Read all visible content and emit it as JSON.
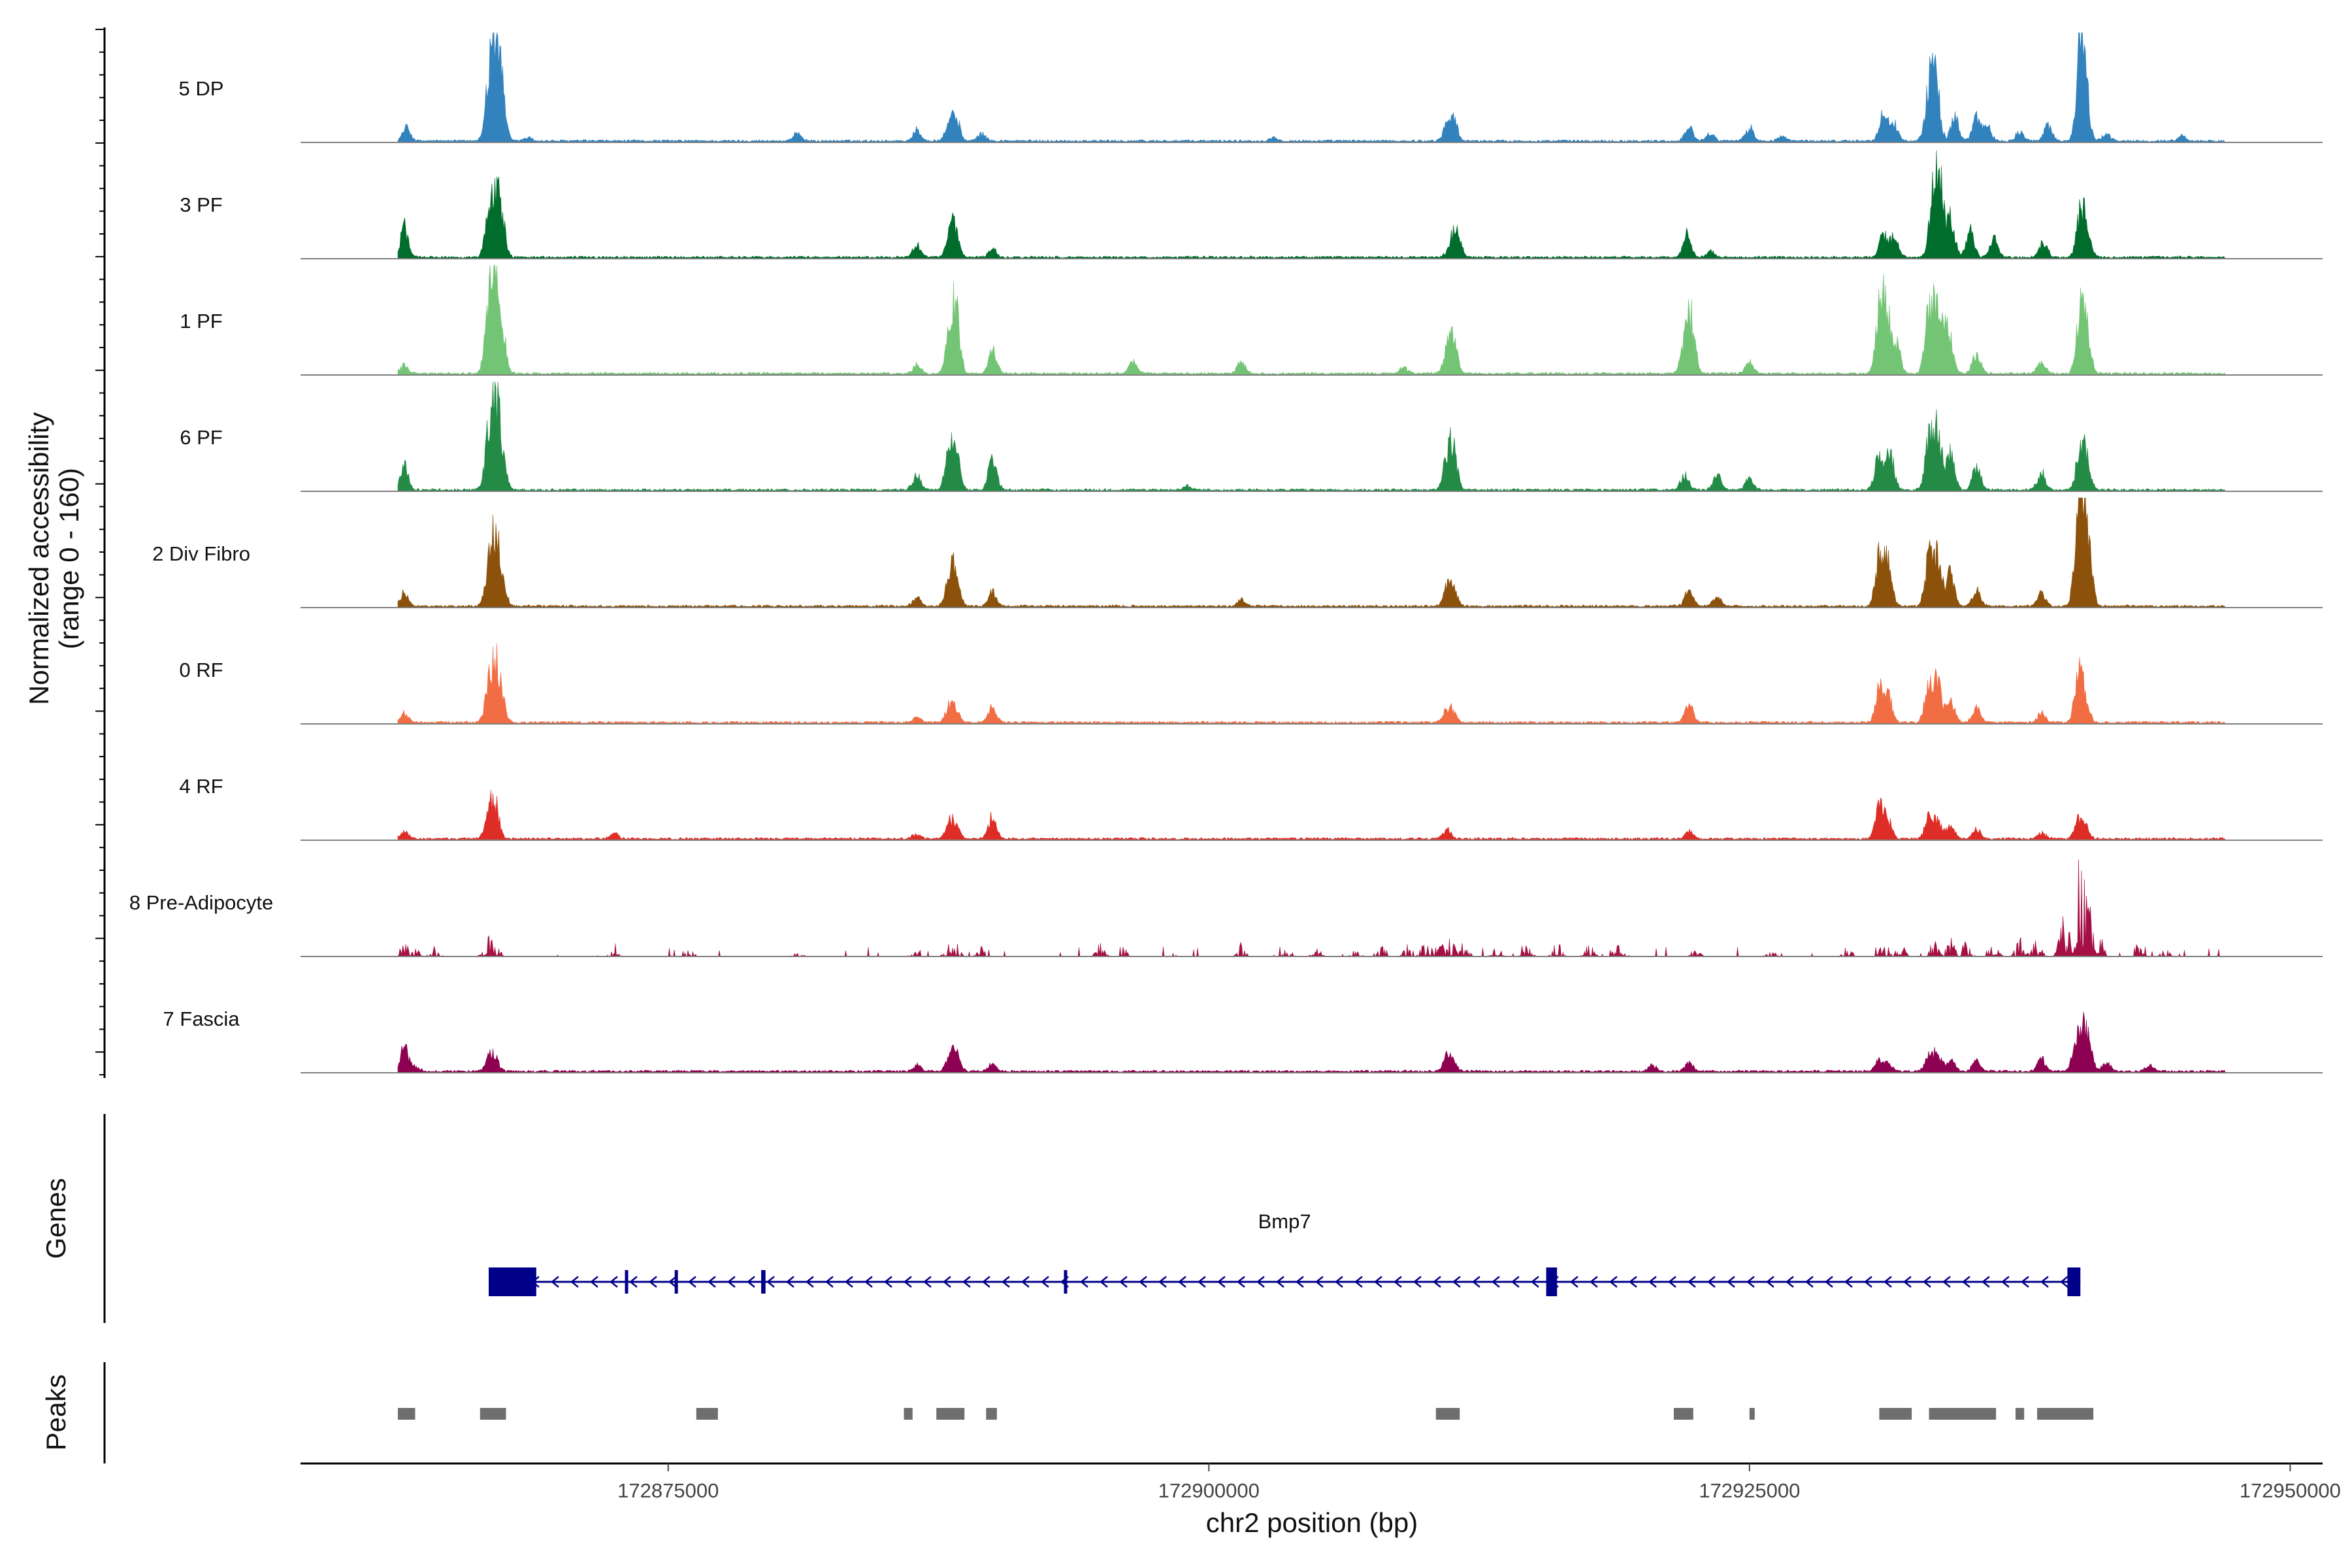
{
  "chart_data": {
    "type": "genome-coverage",
    "region": {
      "chromosome": "chr2",
      "start": 172858000,
      "end": 172951500
    },
    "y_axis_title": [
      "Normalized accessibility",
      "(range 0 - 160)"
    ],
    "y_range": [
      0,
      160
    ],
    "x_axis_title": "chr2 position (bp)",
    "x_ticks": [
      {
        "value": 172875000,
        "label": "172875000"
      },
      {
        "value": 172900000,
        "label": "172900000"
      },
      {
        "value": 172925000,
        "label": "172925000"
      },
      {
        "value": 172950000,
        "label": "172950000"
      }
    ],
    "coverage_range": [
      172862500,
      172947000
    ],
    "tracks": [
      {
        "name": "5 DP",
        "color": "#3182bd",
        "peaks": [
          [
            172862900,
            22
          ],
          [
            172866700,
            90
          ],
          [
            172867000,
            145
          ],
          [
            172867300,
            75
          ],
          [
            172868500,
            6
          ],
          [
            172881000,
            14
          ],
          [
            172886500,
            18
          ],
          [
            172888000,
            28
          ],
          [
            172888300,
            35
          ],
          [
            172889500,
            12
          ],
          [
            172903000,
            6
          ],
          [
            172911000,
            22
          ],
          [
            172911300,
            35
          ],
          [
            172922200,
            25
          ],
          [
            172923200,
            15
          ],
          [
            172925000,
            22
          ],
          [
            172926500,
            8
          ],
          [
            172931200,
            50
          ],
          [
            172931700,
            28
          ],
          [
            172933300,
            75
          ],
          [
            172933600,
            110
          ],
          [
            172934500,
            40
          ],
          [
            172935500,
            40
          ],
          [
            172936000,
            25
          ],
          [
            172937500,
            15
          ],
          [
            172938800,
            25
          ],
          [
            172940300,
            145
          ],
          [
            172940500,
            90
          ],
          [
            172941500,
            12
          ],
          [
            172945000,
            8
          ]
        ]
      },
      {
        "name": "3 PF",
        "color": "#006d2c",
        "peaks": [
          [
            172862800,
            50
          ],
          [
            172866700,
            60
          ],
          [
            172867000,
            90
          ],
          [
            172867300,
            55
          ],
          [
            172886500,
            22
          ],
          [
            172888000,
            35
          ],
          [
            172888300,
            42
          ],
          [
            172890000,
            15
          ],
          [
            172911200,
            25
          ],
          [
            172911500,
            35
          ],
          [
            172922100,
            40
          ],
          [
            172923200,
            10
          ],
          [
            172931200,
            40
          ],
          [
            172931700,
            35
          ],
          [
            172933500,
            100
          ],
          [
            172933800,
            115
          ],
          [
            172934300,
            65
          ],
          [
            172935200,
            45
          ],
          [
            172936300,
            30
          ],
          [
            172938600,
            25
          ],
          [
            172940300,
            70
          ],
          [
            172940600,
            40
          ]
        ]
      },
      {
        "name": "1 PF",
        "color": "#74c476",
        "peaks": [
          [
            172862800,
            14
          ],
          [
            172866700,
            100
          ],
          [
            172867000,
            155
          ],
          [
            172867300,
            75
          ],
          [
            172886500,
            15
          ],
          [
            172888000,
            65
          ],
          [
            172888300,
            100
          ],
          [
            172890000,
            40
          ],
          [
            172896500,
            20
          ],
          [
            172901500,
            22
          ],
          [
            172909000,
            10
          ],
          [
            172911000,
            30
          ],
          [
            172911300,
            65
          ],
          [
            172922000,
            45
          ],
          [
            172922300,
            90
          ],
          [
            172925000,
            20
          ],
          [
            172931000,
            95
          ],
          [
            172931300,
            110
          ],
          [
            172931800,
            50
          ],
          [
            172933300,
            100
          ],
          [
            172933700,
            110
          ],
          [
            172934200,
            80
          ],
          [
            172935500,
            35
          ],
          [
            172938500,
            20
          ],
          [
            172940300,
            95
          ],
          [
            172940600,
            60
          ]
        ]
      },
      {
        "name": "6 PF",
        "color": "#238b45",
        "peaks": [
          [
            172862800,
            38
          ],
          [
            172866700,
            80
          ],
          [
            172867000,
            130
          ],
          [
            172867300,
            60
          ],
          [
            172886500,
            25
          ],
          [
            172888000,
            65
          ],
          [
            172888300,
            75
          ],
          [
            172890000,
            55
          ],
          [
            172899000,
            8
          ],
          [
            172911000,
            45
          ],
          [
            172911300,
            65
          ],
          [
            172922000,
            25
          ],
          [
            172923500,
            25
          ],
          [
            172925000,
            20
          ],
          [
            172931000,
            70
          ],
          [
            172931500,
            60
          ],
          [
            172933300,
            85
          ],
          [
            172933700,
            95
          ],
          [
            172934300,
            60
          ],
          [
            172935500,
            40
          ],
          [
            172938500,
            30
          ],
          [
            172940300,
            75
          ],
          [
            172940600,
            40
          ]
        ]
      },
      {
        "name": "2 Div Fibro",
        "color": "#8c510a",
        "peaks": [
          [
            172862800,
            22
          ],
          [
            172866700,
            60
          ],
          [
            172867000,
            95
          ],
          [
            172867300,
            45
          ],
          [
            172886500,
            15
          ],
          [
            172888000,
            40
          ],
          [
            172888300,
            55
          ],
          [
            172890000,
            25
          ],
          [
            172901500,
            10
          ],
          [
            172911000,
            25
          ],
          [
            172911300,
            30
          ],
          [
            172922200,
            28
          ],
          [
            172923500,
            18
          ],
          [
            172931000,
            80
          ],
          [
            172931400,
            70
          ],
          [
            172933300,
            80
          ],
          [
            172933700,
            75
          ],
          [
            172934300,
            55
          ],
          [
            172935500,
            25
          ],
          [
            172938500,
            20
          ],
          [
            172940200,
            115
          ],
          [
            172940400,
            150
          ],
          [
            172940700,
            70
          ]
        ]
      },
      {
        "name": "0 RF",
        "color": "#f16d43",
        "peaks": [
          [
            172862800,
            15
          ],
          [
            172866700,
            50
          ],
          [
            172867000,
            85
          ],
          [
            172867300,
            35
          ],
          [
            172886500,
            8
          ],
          [
            172888000,
            25
          ],
          [
            172888300,
            20
          ],
          [
            172890000,
            25
          ],
          [
            172911000,
            20
          ],
          [
            172911300,
            15
          ],
          [
            172922200,
            35
          ],
          [
            172931000,
            55
          ],
          [
            172931400,
            45
          ],
          [
            172933300,
            65
          ],
          [
            172933700,
            60
          ],
          [
            172934300,
            40
          ],
          [
            172935500,
            25
          ],
          [
            172938500,
            15
          ],
          [
            172940200,
            70
          ],
          [
            172940500,
            40
          ]
        ]
      },
      {
        "name": "4 RF",
        "color": "#de2d26",
        "peaks": [
          [
            172862800,
            12
          ],
          [
            172866700,
            40
          ],
          [
            172867000,
            55
          ],
          [
            172872500,
            8
          ],
          [
            172886500,
            8
          ],
          [
            172888000,
            25
          ],
          [
            172888300,
            20
          ],
          [
            172890000,
            40
          ],
          [
            172911000,
            15
          ],
          [
            172922200,
            12
          ],
          [
            172931000,
            55
          ],
          [
            172931400,
            30
          ],
          [
            172933300,
            35
          ],
          [
            172933700,
            30
          ],
          [
            172934300,
            22
          ],
          [
            172935500,
            15
          ],
          [
            172938500,
            10
          ],
          [
            172940200,
            30
          ],
          [
            172940500,
            20
          ]
        ]
      },
      {
        "name": "8 Pre-Adipocyte",
        "color": "#a50f45",
        "peaks": [
          [
            172862800,
            20
          ],
          [
            172863300,
            12
          ],
          [
            172864200,
            12
          ],
          [
            172866700,
            28
          ],
          [
            172867000,
            18
          ],
          [
            172872500,
            8
          ],
          [
            172876000,
            10
          ],
          [
            172881000,
            8
          ],
          [
            172886500,
            12
          ],
          [
            172888000,
            18
          ],
          [
            172888300,
            15
          ],
          [
            172889500,
            12
          ],
          [
            172895000,
            18
          ],
          [
            172896000,
            14
          ],
          [
            172901500,
            15
          ],
          [
            172903500,
            12
          ],
          [
            172905000,
            12
          ],
          [
            172906800,
            10
          ],
          [
            172908000,
            15
          ],
          [
            172909200,
            18
          ],
          [
            172910000,
            20
          ],
          [
            172910600,
            22
          ],
          [
            172911200,
            25
          ],
          [
            172911800,
            20
          ],
          [
            172913300,
            15
          ],
          [
            172914700,
            15
          ],
          [
            172916100,
            20
          ],
          [
            172917600,
            18
          ],
          [
            172919000,
            22
          ],
          [
            172922500,
            10
          ],
          [
            172926000,
            10
          ],
          [
            172929500,
            12
          ],
          [
            172931200,
            18
          ],
          [
            172932000,
            22
          ],
          [
            172933500,
            25
          ],
          [
            172934300,
            30
          ],
          [
            172935000,
            20
          ],
          [
            172936300,
            22
          ],
          [
            172937500,
            25
          ],
          [
            172938300,
            30
          ],
          [
            172939500,
            50
          ],
          [
            172940100,
            80
          ],
          [
            172940400,
            100
          ],
          [
            172940700,
            55
          ],
          [
            172941200,
            30
          ],
          [
            172943000,
            15
          ],
          [
            172944200,
            12
          ]
        ]
      },
      {
        "name": "7 Fascia",
        "color": "#8e0152",
        "peaks": [
          [
            172862800,
            40
          ],
          [
            172863300,
            8
          ],
          [
            172866700,
            22
          ],
          [
            172867000,
            20
          ],
          [
            172886500,
            10
          ],
          [
            172888000,
            20
          ],
          [
            172888300,
            30
          ],
          [
            172890000,
            12
          ],
          [
            172911000,
            22
          ],
          [
            172911300,
            15
          ],
          [
            172920500,
            10
          ],
          [
            172922200,
            15
          ],
          [
            172931000,
            20
          ],
          [
            172931400,
            12
          ],
          [
            172933300,
            25
          ],
          [
            172933700,
            30
          ],
          [
            172934300,
            20
          ],
          [
            172935500,
            18
          ],
          [
            172938500,
            22
          ],
          [
            172940100,
            45
          ],
          [
            172940400,
            65
          ],
          [
            172940700,
            35
          ],
          [
            172941500,
            15
          ],
          [
            172943500,
            10
          ]
        ]
      }
    ],
    "genes_label": "Genes",
    "gene": {
      "name": "Bmp7",
      "start": 172866700,
      "end": 172940300,
      "strand": "-",
      "exons": [
        [
          172866700,
          172868900
        ],
        [
          172873000,
          172873150
        ],
        [
          172875300,
          172875450
        ],
        [
          172879300,
          172879500
        ],
        [
          172893300,
          172893450
        ],
        [
          172915600,
          172916100
        ],
        [
          172939700,
          172940300
        ]
      ]
    },
    "peaks_label": "Peaks",
    "peak_regions": [
      [
        172862500,
        172863300
      ],
      [
        172866300,
        172867500
      ],
      [
        172876300,
        172877300
      ],
      [
        172885900,
        172886300
      ],
      [
        172887400,
        172888700
      ],
      [
        172889700,
        172890200
      ],
      [
        172910500,
        172911600
      ],
      [
        172921500,
        172922400
      ],
      [
        172925000,
        172925200
      ],
      [
        172931000,
        172932500
      ],
      [
        172933300,
        172936400
      ],
      [
        172937300,
        172937700
      ],
      [
        172938300,
        172940900
      ]
    ]
  }
}
